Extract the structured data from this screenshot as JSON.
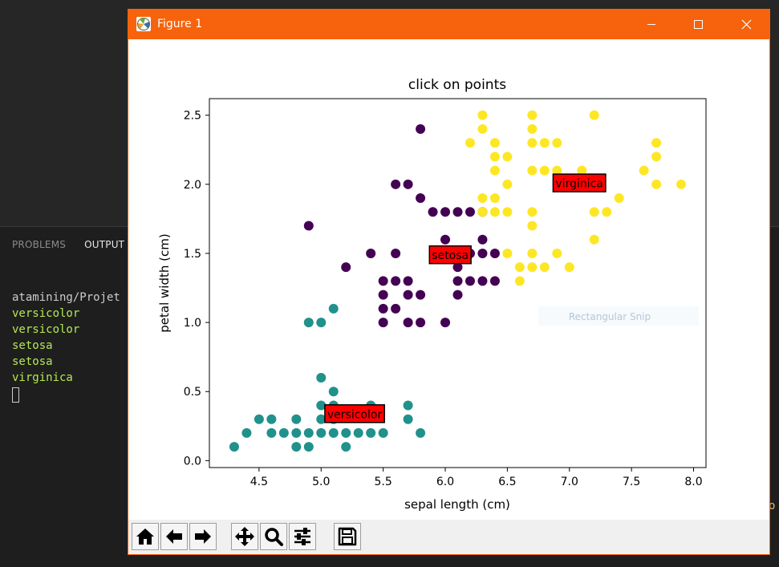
{
  "window": {
    "title": "Figure 1"
  },
  "panel": {
    "tabs": [
      {
        "label": "PROBLEMS",
        "active": false
      },
      {
        "label": "OUTPUT",
        "active": true
      }
    ],
    "terminal": {
      "path_line": "atamining/Projet",
      "outputs": [
        "versicolor",
        "versicolor",
        "setosa",
        "setosa",
        "virginica"
      ]
    },
    "edge_glyph": "o"
  },
  "overlay": {
    "snip_label": "Rectangular Snip"
  },
  "toolbar": {
    "buttons": [
      {
        "name": "home-button",
        "icon": "home-icon"
      },
      {
        "name": "back-button",
        "icon": "arrow-left-icon"
      },
      {
        "name": "forward-button",
        "icon": "arrow-right-icon"
      },
      {
        "name": "pan-button",
        "icon": "move-icon"
      },
      {
        "name": "zoom-button",
        "icon": "magnifier-icon"
      },
      {
        "name": "configure-subplots-button",
        "icon": "sliders-icon"
      },
      {
        "name": "save-button",
        "icon": "floppy-icon"
      }
    ]
  },
  "colors": {
    "setosa": "#440154",
    "versicolor": "#21918c",
    "virginica": "#fde725",
    "annotation_bg": "#ff0000",
    "titlebar": "#f7630c"
  },
  "chart_data": {
    "type": "scatter",
    "title": "click on points",
    "xlabel": "sepal length (cm)",
    "ylabel": "petal width (cm)",
    "xlim": [
      4.1,
      8.1
    ],
    "ylim": [
      -0.05,
      2.62
    ],
    "xticks": [
      4.5,
      5.0,
      5.5,
      6.0,
      6.5,
      7.0,
      7.5,
      8.0
    ],
    "yticks": [
      0.0,
      0.5,
      1.0,
      1.5,
      2.0,
      2.5
    ],
    "xtick_labels": [
      "4.5",
      "5.0",
      "5.5",
      "6.0",
      "6.5",
      "7.0",
      "7.5",
      "8.0"
    ],
    "ytick_labels": [
      "0.0",
      "0.5",
      "1.0",
      "1.5",
      "2.0",
      "2.5"
    ],
    "grid": false,
    "series": [
      {
        "color": "#21918c",
        "points": [
          [
            4.3,
            0.1
          ],
          [
            4.4,
            0.2
          ],
          [
            4.5,
            0.3
          ],
          [
            4.6,
            0.2
          ],
          [
            4.6,
            0.3
          ],
          [
            4.7,
            0.2
          ],
          [
            4.8,
            0.1
          ],
          [
            4.8,
            0.2
          ],
          [
            4.8,
            0.3
          ],
          [
            4.9,
            0.1
          ],
          [
            4.9,
            0.2
          ],
          [
            5.0,
            0.2
          ],
          [
            5.0,
            0.3
          ],
          [
            5.0,
            0.4
          ],
          [
            5.0,
            0.6
          ],
          [
            5.1,
            0.2
          ],
          [
            5.1,
            0.3
          ],
          [
            5.1,
            0.4
          ],
          [
            5.1,
            0.5
          ],
          [
            5.2,
            0.1
          ],
          [
            5.2,
            0.2
          ],
          [
            5.3,
            0.2
          ],
          [
            5.4,
            0.2
          ],
          [
            5.4,
            0.4
          ],
          [
            5.5,
            0.2
          ],
          [
            5.7,
            0.3
          ],
          [
            5.7,
            0.4
          ],
          [
            5.8,
            0.2
          ],
          [
            4.9,
            1.0
          ],
          [
            5.0,
            1.0
          ],
          [
            5.1,
            1.1
          ]
        ]
      },
      {
        "color": "#440154",
        "points": [
          [
            5.8,
            2.4
          ],
          [
            5.6,
            2.0
          ],
          [
            5.7,
            2.0
          ],
          [
            5.8,
            1.9
          ],
          [
            5.9,
            1.8
          ],
          [
            6.0,
            1.8
          ],
          [
            6.1,
            1.8
          ],
          [
            6.2,
            1.8
          ],
          [
            6.3,
            1.8
          ],
          [
            4.9,
            1.7
          ],
          [
            6.0,
            1.6
          ],
          [
            6.3,
            1.6
          ],
          [
            5.4,
            1.5
          ],
          [
            5.6,
            1.5
          ],
          [
            6.0,
            1.5
          ],
          [
            6.1,
            1.4
          ],
          [
            6.2,
            1.5
          ],
          [
            6.3,
            1.5
          ],
          [
            6.4,
            1.5
          ],
          [
            5.2,
            1.4
          ],
          [
            5.5,
            1.3
          ],
          [
            5.6,
            1.3
          ],
          [
            5.7,
            1.3
          ],
          [
            6.1,
            1.3
          ],
          [
            6.2,
            1.3
          ],
          [
            6.3,
            1.3
          ],
          [
            6.4,
            1.3
          ],
          [
            5.5,
            1.2
          ],
          [
            5.7,
            1.2
          ],
          [
            5.8,
            1.2
          ],
          [
            6.1,
            1.2
          ],
          [
            5.5,
            1.1
          ],
          [
            5.6,
            1.1
          ],
          [
            5.5,
            1.0
          ],
          [
            5.7,
            1.0
          ],
          [
            5.8,
            1.0
          ],
          [
            6.0,
            1.0
          ]
        ]
      },
      {
        "color": "#fde725",
        "points": [
          [
            6.3,
            2.5
          ],
          [
            6.7,
            2.5
          ],
          [
            7.2,
            2.5
          ],
          [
            6.3,
            2.4
          ],
          [
            6.7,
            2.4
          ],
          [
            6.2,
            2.3
          ],
          [
            6.4,
            2.3
          ],
          [
            6.7,
            2.3
          ],
          [
            6.8,
            2.3
          ],
          [
            6.9,
            2.3
          ],
          [
            7.7,
            2.3
          ],
          [
            6.4,
            2.2
          ],
          [
            6.5,
            2.2
          ],
          [
            7.7,
            2.2
          ],
          [
            6.4,
            2.1
          ],
          [
            6.7,
            2.1
          ],
          [
            6.8,
            2.1
          ],
          [
            6.9,
            2.1
          ],
          [
            7.1,
            2.1
          ],
          [
            7.6,
            2.1
          ],
          [
            6.5,
            2.0
          ],
          [
            7.7,
            2.0
          ],
          [
            7.9,
            2.0
          ],
          [
            6.3,
            1.9
          ],
          [
            6.4,
            1.9
          ],
          [
            7.4,
            1.9
          ],
          [
            6.3,
            1.8
          ],
          [
            6.4,
            1.8
          ],
          [
            6.5,
            1.8
          ],
          [
            6.7,
            1.8
          ],
          [
            7.2,
            1.8
          ],
          [
            7.3,
            1.8
          ],
          [
            6.7,
            1.7
          ],
          [
            7.2,
            1.6
          ],
          [
            6.5,
            1.5
          ],
          [
            6.7,
            1.5
          ],
          [
            6.9,
            1.5
          ],
          [
            6.6,
            1.4
          ],
          [
            6.7,
            1.4
          ],
          [
            6.8,
            1.4
          ],
          [
            7.0,
            1.4
          ],
          [
            6.6,
            1.3
          ]
        ]
      }
    ],
    "annotations": [
      {
        "text": "virginica",
        "x": 7.08,
        "y": 2.01
      },
      {
        "text": "setosa",
        "x": 6.04,
        "y": 1.49
      },
      {
        "text": "versicolor",
        "x": 5.27,
        "y": 0.34
      }
    ]
  }
}
